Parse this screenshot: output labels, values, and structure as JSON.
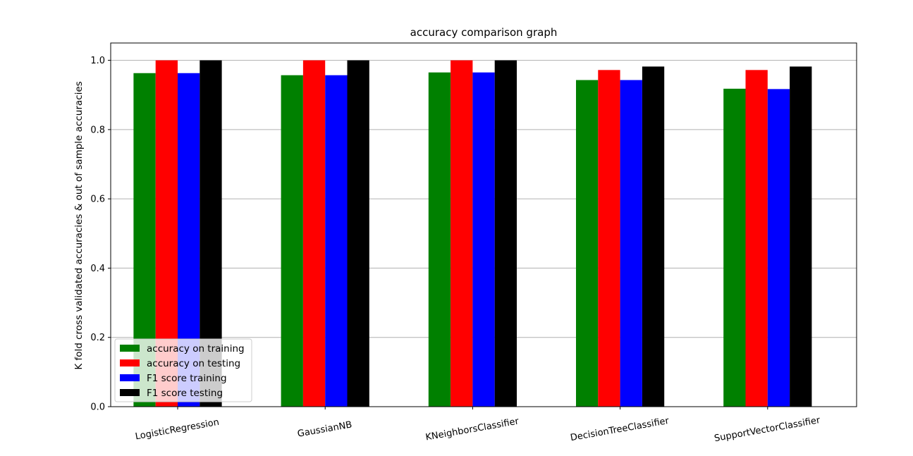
{
  "chart_data": {
    "type": "bar",
    "title": "accuracy comparison graph",
    "xlabel": "",
    "ylabel": "K fold cross validated accuracies & out of sample accuracies",
    "ylim": [
      0,
      1.05
    ],
    "yticks": [
      "0.0",
      "0.2",
      "0.4",
      "0.6",
      "0.8",
      "1.0"
    ],
    "grid": "horizontal",
    "legend_position": "bottom-left",
    "categories": [
      "LogisticRegression",
      "GaussianNB",
      "KNeighborsClassifier",
      "DecisionTreeClassifier",
      "SupportVectorClassifier"
    ],
    "series": [
      {
        "name": "accuracy on training",
        "color": "#008000",
        "values": [
          0.963,
          0.957,
          0.965,
          0.943,
          0.918
        ]
      },
      {
        "name": "accuracy on testing",
        "color": "#ff0000",
        "values": [
          1.0,
          1.0,
          1.0,
          0.972,
          0.972
        ]
      },
      {
        "name": "F1 score training",
        "color": "#0000ff",
        "values": [
          0.963,
          0.957,
          0.965,
          0.943,
          0.917
        ]
      },
      {
        "name": "F1 score testing",
        "color": "#000000",
        "values": [
          1.0,
          1.0,
          1.0,
          0.982,
          0.982
        ]
      }
    ]
  }
}
